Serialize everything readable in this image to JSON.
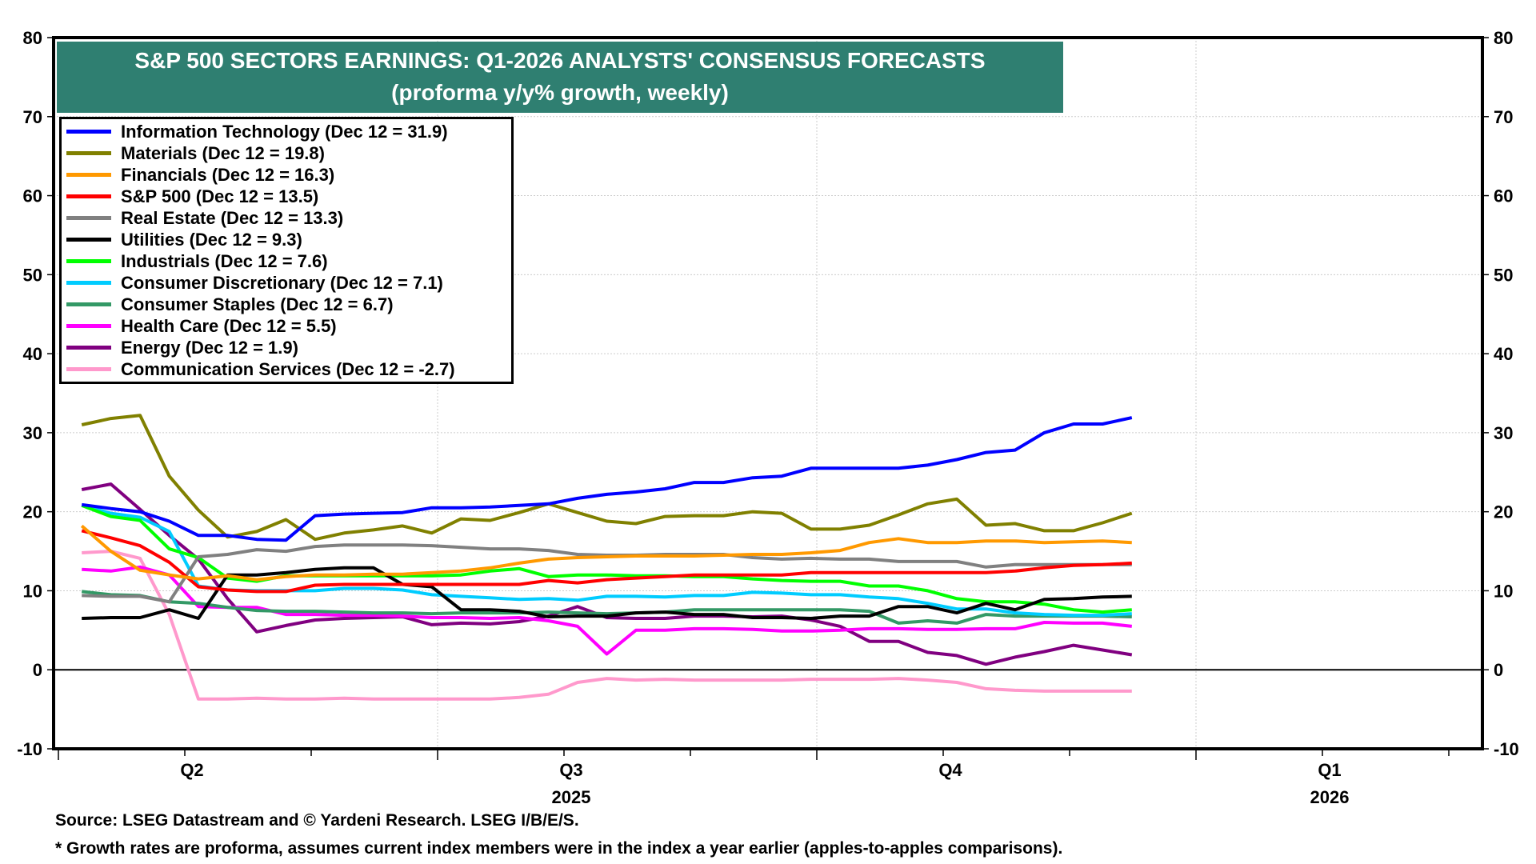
{
  "chart_data": {
    "type": "line",
    "title": "S&P 500 SECTORS EARNINGS: Q1-2026 ANALYSTS' CONSENSUS FORECASTS",
    "subtitle": "(proforma y/y% growth, weekly)",
    "xlabel": "",
    "ylabel": "",
    "ylim": [
      -10,
      80
    ],
    "yticks": [
      80,
      70,
      60,
      50,
      40,
      30,
      20,
      10,
      0,
      -10
    ],
    "ytick_labels": [
      "80",
      "70",
      "60",
      "50",
      "40",
      "30",
      "20",
      "10",
      "0",
      "-10"
    ],
    "x_quarter_labels": [
      "Q2",
      "Q3",
      "Q4",
      "Q1"
    ],
    "x_year_labels": [
      "2025",
      "2026"
    ],
    "x_range_weeks": [
      0,
      50
    ],
    "x_start_week_offset": 0.8,
    "grid": true,
    "legend_position": "top-left",
    "series": [
      {
        "name": "Information Technology (Dec 12 = 31.9)",
        "color": "#0000ff",
        "values": [
          20.9,
          20.4,
          20.0,
          18.8,
          17.0,
          17.0,
          16.5,
          16.4,
          19.5,
          19.7,
          19.8,
          19.9,
          20.5,
          20.5,
          20.6,
          20.8,
          21.0,
          21.7,
          22.2,
          22.5,
          22.9,
          23.7,
          23.7,
          24.3,
          24.5,
          25.5,
          25.5,
          25.5,
          25.5,
          25.9,
          26.6,
          27.5,
          27.8,
          30.0,
          31.1,
          31.1,
          31.9
        ]
      },
      {
        "name": "Materials (Dec 12 = 19.8)",
        "color": "#808000",
        "values": [
          31.0,
          31.8,
          32.2,
          24.5,
          20.2,
          16.8,
          17.5,
          19.0,
          16.5,
          17.3,
          17.7,
          18.2,
          17.3,
          19.1,
          18.9,
          19.9,
          21.0,
          19.9,
          18.8,
          18.5,
          19.4,
          19.5,
          19.5,
          20.0,
          19.8,
          17.8,
          17.8,
          18.3,
          19.6,
          21.0,
          21.6,
          18.3,
          18.5,
          17.6,
          17.6,
          18.6,
          19.8
        ]
      },
      {
        "name": "Financials (Dec 12 = 16.3)",
        "color": "#ff9900",
        "values": [
          18.2,
          15.0,
          12.6,
          12.0,
          11.5,
          11.9,
          11.4,
          11.8,
          12.0,
          12.0,
          12.1,
          12.1,
          12.3,
          12.5,
          12.9,
          13.5,
          14.0,
          14.2,
          14.3,
          14.4,
          14.4,
          14.4,
          14.5,
          14.6,
          14.6,
          14.8,
          15.1,
          16.1,
          16.6,
          16.1,
          16.1,
          16.3,
          16.3,
          16.1,
          16.2,
          16.3,
          16.1
        ]
      },
      {
        "name": "S&P 500 (Dec 12 = 13.5)",
        "color": "#ff0000",
        "values": [
          17.6,
          16.7,
          15.7,
          13.6,
          10.5,
          10.1,
          9.9,
          9.9,
          10.7,
          10.8,
          10.8,
          10.8,
          10.8,
          10.8,
          10.8,
          10.8,
          11.3,
          11.0,
          11.4,
          11.6,
          11.8,
          12.0,
          12.0,
          12.0,
          12.0,
          12.3,
          12.3,
          12.3,
          12.3,
          12.3,
          12.3,
          12.3,
          12.5,
          12.9,
          13.2,
          13.3,
          13.5
        ]
      },
      {
        "name": "Real Estate (Dec 12 = 13.3)",
        "color": "#808080",
        "values": [
          9.4,
          9.3,
          9.3,
          8.6,
          14.3,
          14.6,
          15.2,
          15.0,
          15.6,
          15.8,
          15.8,
          15.8,
          15.7,
          15.5,
          15.3,
          15.3,
          15.1,
          14.6,
          14.5,
          14.5,
          14.6,
          14.6,
          14.6,
          14.2,
          14.0,
          14.1,
          14.0,
          14.0,
          13.7,
          13.7,
          13.7,
          13.0,
          13.3,
          13.3,
          13.3,
          13.3,
          13.3
        ]
      },
      {
        "name": "Utilities (Dec 12 = 9.3)",
        "color": "#000000",
        "values": [
          6.5,
          6.6,
          6.6,
          7.6,
          6.5,
          12.0,
          12.0,
          12.3,
          12.7,
          12.9,
          12.9,
          10.8,
          10.5,
          7.6,
          7.6,
          7.4,
          6.7,
          6.8,
          6.8,
          7.2,
          7.3,
          7.0,
          7.0,
          6.6,
          6.6,
          6.5,
          6.8,
          6.8,
          8.0,
          8.0,
          7.2,
          8.4,
          7.6,
          8.9,
          9.0,
          9.2,
          9.3
        ]
      },
      {
        "name": "Industrials (Dec 12 = 7.6)",
        "color": "#00ff00",
        "values": [
          20.8,
          19.4,
          18.9,
          15.3,
          14.2,
          11.6,
          11.2,
          11.9,
          11.9,
          11.9,
          11.9,
          11.9,
          11.9,
          12.0,
          12.5,
          12.8,
          11.8,
          12.0,
          12.0,
          11.9,
          11.9,
          11.8,
          11.8,
          11.5,
          11.3,
          11.2,
          11.2,
          10.6,
          10.6,
          10.0,
          9.0,
          8.6,
          8.6,
          8.3,
          7.6,
          7.3,
          7.6
        ]
      },
      {
        "name": "Consumer Discretionary (Dec 12 = 7.1)",
        "color": "#00ccff",
        "values": [
          20.8,
          19.8,
          19.3,
          17.5,
          10.6,
          10.1,
          10.0,
          10.0,
          10.0,
          10.3,
          10.3,
          10.1,
          9.5,
          9.3,
          9.1,
          8.9,
          9.0,
          8.8,
          9.3,
          9.3,
          9.2,
          9.4,
          9.4,
          9.8,
          9.7,
          9.5,
          9.5,
          9.2,
          9.0,
          8.4,
          7.7,
          7.7,
          7.2,
          7.0,
          6.9,
          6.9,
          7.1
        ]
      },
      {
        "name": "Consumer Staples (Dec 12 = 6.7)",
        "color": "#339966",
        "values": [
          9.9,
          9.5,
          9.4,
          8.6,
          8.4,
          7.9,
          7.5,
          7.4,
          7.4,
          7.3,
          7.2,
          7.2,
          7.1,
          7.2,
          7.2,
          7.2,
          7.3,
          7.2,
          7.1,
          7.2,
          7.3,
          7.6,
          7.6,
          7.6,
          7.6,
          7.6,
          7.6,
          7.4,
          5.9,
          6.2,
          5.9,
          7.0,
          6.8,
          6.8,
          6.8,
          6.8,
          6.7
        ]
      },
      {
        "name": "Health Care (Dec 12 = 5.5)",
        "color": "#ff00ff",
        "values": [
          12.7,
          12.5,
          13.0,
          12.0,
          8.0,
          7.9,
          7.9,
          7.0,
          7.0,
          6.9,
          6.9,
          6.8,
          6.6,
          6.6,
          6.5,
          6.6,
          6.2,
          5.5,
          2.0,
          5.0,
          5.0,
          5.2,
          5.2,
          5.1,
          4.9,
          4.9,
          5.0,
          5.2,
          5.2,
          5.1,
          5.1,
          5.2,
          5.2,
          6.0,
          5.9,
          5.9,
          5.5
        ]
      },
      {
        "name": "Energy (Dec 12 = 1.9)",
        "color": "#800080",
        "values": [
          22.8,
          23.5,
          20.3,
          17.0,
          14.0,
          9.0,
          4.8,
          5.6,
          6.3,
          6.5,
          6.6,
          6.7,
          5.7,
          5.9,
          5.8,
          6.1,
          6.8,
          8.0,
          6.6,
          6.5,
          6.5,
          6.8,
          6.8,
          6.7,
          6.8,
          6.3,
          5.5,
          3.6,
          3.6,
          2.2,
          1.8,
          0.7,
          1.6,
          2.3,
          3.1,
          2.5,
          1.9
        ]
      },
      {
        "name": "Communication Services (Dec 12 = -2.7)",
        "color": "#ff99cc",
        "values": [
          14.8,
          15.0,
          14.1,
          7.0,
          -3.7,
          -3.7,
          -3.6,
          -3.7,
          -3.7,
          -3.6,
          -3.7,
          -3.7,
          -3.7,
          -3.7,
          -3.7,
          -3.5,
          -3.1,
          -1.6,
          -1.1,
          -1.3,
          -1.2,
          -1.3,
          -1.3,
          -1.3,
          -1.3,
          -1.2,
          -1.2,
          -1.2,
          -1.1,
          -1.3,
          -1.6,
          -2.4,
          -2.6,
          -2.7,
          -2.7,
          -2.7,
          -2.7
        ]
      }
    ]
  },
  "title_box": {
    "line1": "S&P 500 SECTORS EARNINGS: Q1-2026 ANALYSTS' CONSENSUS FORECASTS",
    "line2": "(proforma y/y% growth, weekly)",
    "background": "#2f7f71"
  },
  "footer": {
    "source": "Source: LSEG Datastream and © Yardeni Research. LSEG I/B/E/S.",
    "note": "* Growth rates are proforma, assumes current index members were in the index a year earlier (apples-to-apples comparisons)."
  }
}
